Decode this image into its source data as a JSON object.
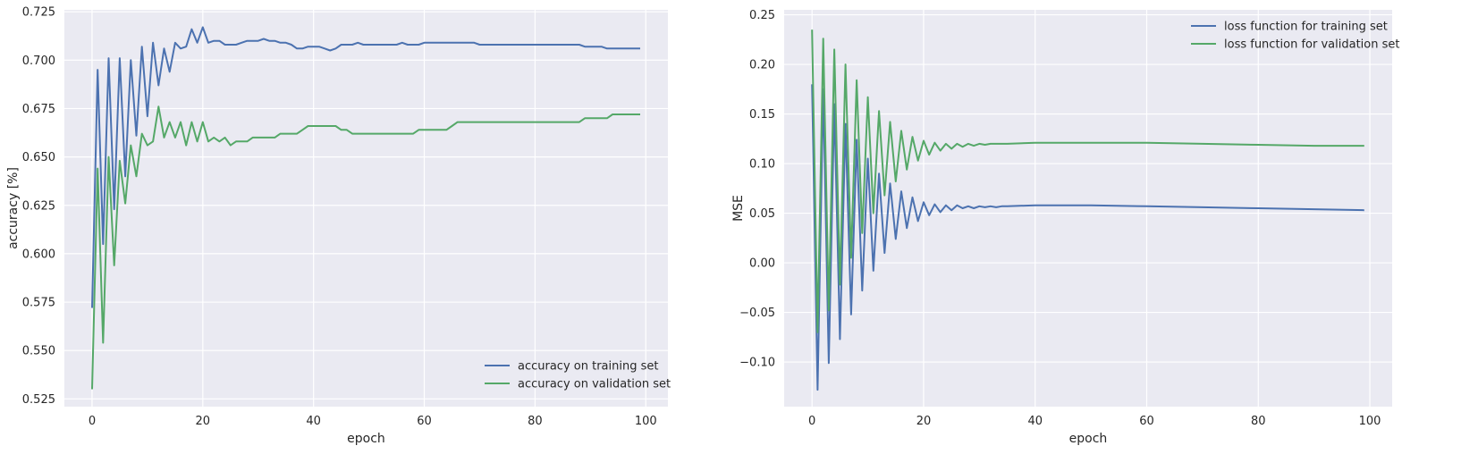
{
  "chart_data": [
    {
      "type": "line",
      "title": "",
      "xlabel": "epoch",
      "ylabel": "accuracy [%]",
      "xlim": [
        -5,
        104
      ],
      "ylim": [
        0.521,
        0.726
      ],
      "xticks": [
        0,
        20,
        40,
        60,
        80,
        100
      ],
      "xtick_labels": [
        "0",
        "20",
        "40",
        "60",
        "80",
        "100"
      ],
      "yticks": [
        0.525,
        0.55,
        0.575,
        0.6,
        0.625,
        0.65,
        0.675,
        0.7,
        0.725
      ],
      "ytick_labels": [
        "0.525",
        "0.550",
        "0.575",
        "0.600",
        "0.625",
        "0.650",
        "0.675",
        "0.700",
        "0.725"
      ],
      "grid": true,
      "legend_position": "lower-right",
      "series": [
        {
          "name": "accuracy on training set",
          "color": "#4c72b0",
          "x": [
            0,
            1,
            2,
            3,
            4,
            5,
            6,
            7,
            8,
            9,
            10,
            11,
            12,
            13,
            14,
            15,
            16,
            17,
            18,
            19,
            20,
            21,
            22,
            23,
            24,
            25,
            26,
            27,
            28,
            29,
            30,
            31,
            32,
            33,
            34,
            35,
            36,
            37,
            38,
            39,
            40,
            41,
            42,
            43,
            44,
            45,
            46,
            47,
            48,
            49,
            50,
            51,
            52,
            53,
            54,
            55,
            56,
            57,
            58,
            59,
            60,
            61,
            62,
            63,
            64,
            65,
            66,
            67,
            68,
            69,
            70,
            71,
            72,
            73,
            74,
            75,
            76,
            77,
            78,
            79,
            80,
            81,
            82,
            83,
            84,
            85,
            86,
            87,
            88,
            89,
            90,
            91,
            92,
            93,
            94,
            95,
            96,
            97,
            98,
            99
          ],
          "y": [
            0.572,
            0.695,
            0.605,
            0.701,
            0.623,
            0.701,
            0.64,
            0.7,
            0.661,
            0.707,
            0.671,
            0.709,
            0.687,
            0.706,
            0.694,
            0.709,
            0.706,
            0.707,
            0.716,
            0.709,
            0.717,
            0.709,
            0.71,
            0.71,
            0.708,
            0.708,
            0.708,
            0.709,
            0.71,
            0.71,
            0.71,
            0.711,
            0.71,
            0.71,
            0.709,
            0.709,
            0.708,
            0.706,
            0.706,
            0.707,
            0.707,
            0.707,
            0.706,
            0.705,
            0.706,
            0.708,
            0.708,
            0.708,
            0.709,
            0.708,
            0.708,
            0.708,
            0.708,
            0.708,
            0.708,
            0.708,
            0.709,
            0.708,
            0.708,
            0.708,
            0.709,
            0.709,
            0.709,
            0.709,
            0.709,
            0.709,
            0.709,
            0.709,
            0.709,
            0.709,
            0.708,
            0.708,
            0.708,
            0.708,
            0.708,
            0.708,
            0.708,
            0.708,
            0.708,
            0.708,
            0.708,
            0.708,
            0.708,
            0.708,
            0.708,
            0.708,
            0.708,
            0.708,
            0.708,
            0.707,
            0.707,
            0.707,
            0.707,
            0.706,
            0.706,
            0.706,
            0.706,
            0.706,
            0.706,
            0.706
          ]
        },
        {
          "name": "accuracy on validation set",
          "color": "#55a868",
          "x": [
            0,
            1,
            2,
            3,
            4,
            5,
            6,
            7,
            8,
            9,
            10,
            11,
            12,
            13,
            14,
            15,
            16,
            17,
            18,
            19,
            20,
            21,
            22,
            23,
            24,
            25,
            26,
            27,
            28,
            29,
            30,
            31,
            32,
            33,
            34,
            35,
            36,
            37,
            38,
            39,
            40,
            41,
            42,
            43,
            44,
            45,
            46,
            47,
            48,
            49,
            50,
            51,
            52,
            53,
            54,
            55,
            56,
            57,
            58,
            59,
            60,
            61,
            62,
            63,
            64,
            65,
            66,
            67,
            68,
            69,
            70,
            71,
            72,
            73,
            74,
            75,
            76,
            77,
            78,
            79,
            80,
            81,
            82,
            83,
            84,
            85,
            86,
            87,
            88,
            89,
            90,
            91,
            92,
            93,
            94,
            95,
            96,
            97,
            98,
            99
          ],
          "y": [
            0.53,
            0.644,
            0.554,
            0.65,
            0.594,
            0.648,
            0.626,
            0.656,
            0.64,
            0.662,
            0.656,
            0.658,
            0.676,
            0.66,
            0.668,
            0.66,
            0.668,
            0.656,
            0.668,
            0.658,
            0.668,
            0.658,
            0.66,
            0.658,
            0.66,
            0.656,
            0.658,
            0.658,
            0.658,
            0.66,
            0.66,
            0.66,
            0.66,
            0.66,
            0.662,
            0.662,
            0.662,
            0.662,
            0.664,
            0.666,
            0.666,
            0.666,
            0.666,
            0.666,
            0.666,
            0.664,
            0.664,
            0.662,
            0.662,
            0.662,
            0.662,
            0.662,
            0.662,
            0.662,
            0.662,
            0.662,
            0.662,
            0.662,
            0.662,
            0.664,
            0.664,
            0.664,
            0.664,
            0.664,
            0.664,
            0.666,
            0.668,
            0.668,
            0.668,
            0.668,
            0.668,
            0.668,
            0.668,
            0.668,
            0.668,
            0.668,
            0.668,
            0.668,
            0.668,
            0.668,
            0.668,
            0.668,
            0.668,
            0.668,
            0.668,
            0.668,
            0.668,
            0.668,
            0.668,
            0.67,
            0.67,
            0.67,
            0.67,
            0.67,
            0.672,
            0.672,
            0.672,
            0.672,
            0.672,
            0.672
          ]
        }
      ]
    },
    {
      "type": "line",
      "title": "",
      "xlabel": "epoch",
      "ylabel": "MSE",
      "xlim": [
        -5,
        104
      ],
      "ylim": [
        -0.145,
        0.255
      ],
      "xticks": [
        0,
        20,
        40,
        60,
        80,
        100
      ],
      "xtick_labels": [
        "0",
        "20",
        "40",
        "60",
        "80",
        "100"
      ],
      "yticks": [
        -0.1,
        -0.05,
        0.0,
        0.05,
        0.1,
        0.15,
        0.2,
        0.25
      ],
      "ytick_labels": [
        "−0.10",
        "−0.05",
        "0.00",
        "0.05",
        "0.10",
        "0.15",
        "0.20",
        "0.25"
      ],
      "grid": true,
      "legend_position": "upper-right",
      "series": [
        {
          "name": "loss function for training set",
          "color": "#4c72b0",
          "x": [
            0,
            1,
            2,
            3,
            4,
            5,
            6,
            7,
            8,
            9,
            10,
            11,
            12,
            13,
            14,
            15,
            16,
            17,
            18,
            19,
            20,
            21,
            22,
            23,
            24,
            25,
            26,
            27,
            28,
            29,
            30,
            31,
            32,
            33,
            34,
            35,
            40,
            45,
            50,
            60,
            70,
            80,
            90,
            99
          ],
          "y": [
            0.18,
            -0.128,
            0.175,
            -0.101,
            0.16,
            -0.077,
            0.14,
            -0.052,
            0.124,
            -0.028,
            0.105,
            -0.008,
            0.09,
            0.01,
            0.08,
            0.024,
            0.072,
            0.035,
            0.066,
            0.042,
            0.061,
            0.048,
            0.059,
            0.051,
            0.058,
            0.053,
            0.058,
            0.055,
            0.057,
            0.055,
            0.057,
            0.056,
            0.057,
            0.056,
            0.057,
            0.057,
            0.058,
            0.058,
            0.058,
            0.057,
            0.056,
            0.055,
            0.054,
            0.053
          ]
        },
        {
          "name": "loss function for validation set",
          "color": "#55a868",
          "x": [
            0,
            1,
            2,
            3,
            4,
            5,
            6,
            7,
            8,
            9,
            10,
            11,
            12,
            13,
            14,
            15,
            16,
            17,
            18,
            19,
            20,
            21,
            22,
            23,
            24,
            25,
            26,
            27,
            28,
            29,
            30,
            31,
            32,
            33,
            34,
            35,
            40,
            45,
            50,
            60,
            70,
            80,
            90,
            99
          ],
          "y": [
            0.235,
            -0.07,
            0.226,
            -0.048,
            0.215,
            -0.022,
            0.2,
            0.005,
            0.184,
            0.03,
            0.167,
            0.05,
            0.153,
            0.068,
            0.142,
            0.082,
            0.133,
            0.094,
            0.127,
            0.103,
            0.123,
            0.109,
            0.121,
            0.113,
            0.12,
            0.115,
            0.12,
            0.117,
            0.12,
            0.118,
            0.12,
            0.119,
            0.12,
            0.12,
            0.12,
            0.12,
            0.121,
            0.121,
            0.121,
            0.121,
            0.12,
            0.119,
            0.118,
            0.118
          ]
        }
      ]
    }
  ]
}
